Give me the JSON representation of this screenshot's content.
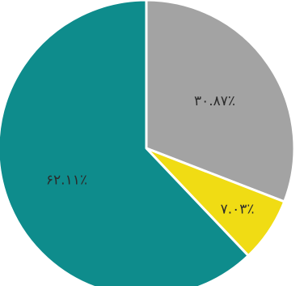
{
  "chart_data": {
    "type": "pie",
    "start_angle_deg": 0,
    "direction": "clockwise",
    "slices": [
      {
        "value": 30.87,
        "label": "۳۰.۸۷٪",
        "color": "#a3a3a3"
      },
      {
        "value": 7.03,
        "label": "۷.۰۳٪",
        "color": "#f0dc14"
      },
      {
        "value": 62.11,
        "label": "۶۲.۱۱٪",
        "color": "#0e8c8c"
      }
    ],
    "slice_border_color": "#ffffff"
  }
}
